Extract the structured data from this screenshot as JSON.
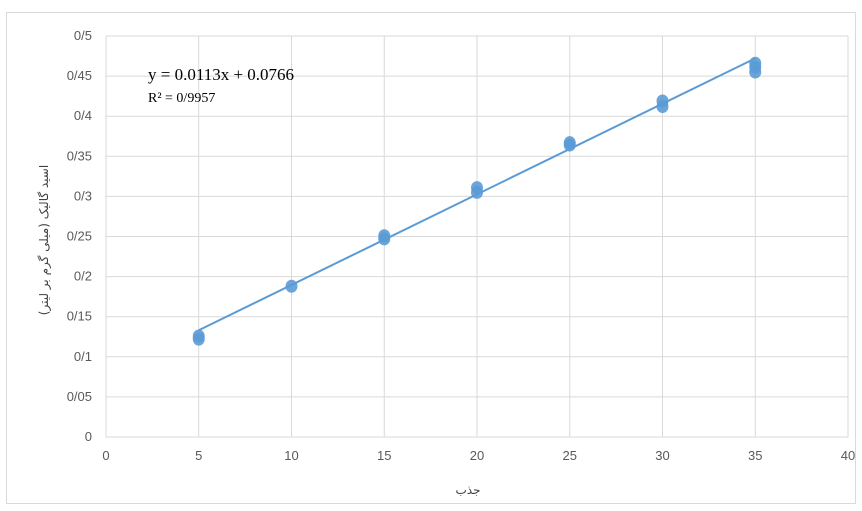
{
  "chart_data": {
    "type": "scatter",
    "title": "",
    "xlabel": "جذب",
    "ylabel": "اسید گالیک (میلی گرم بر لیتر)",
    "xlim": [
      0,
      40
    ],
    "ylim": [
      0,
      0.5
    ],
    "x_ticks": [
      0,
      5,
      10,
      15,
      20,
      25,
      30,
      35,
      40
    ],
    "x_tick_labels": [
      "0",
      "5",
      "10",
      "15",
      "20",
      "25",
      "30",
      "35",
      "40"
    ],
    "y_ticks": [
      0,
      0.05,
      0.1,
      0.15,
      0.2,
      0.25,
      0.3,
      0.35,
      0.4,
      0.45,
      0.5
    ],
    "y_tick_labels": [
      "0",
      "0/05",
      "0/1",
      "0/15",
      "0/2",
      "0/25",
      "0/3",
      "0/35",
      "0/4",
      "0/45",
      "0/5"
    ],
    "grid": true,
    "series": [
      {
        "points": [
          {
            "x": 5,
            "y": 0.122
          },
          {
            "x": 5,
            "y": 0.126
          },
          {
            "x": 10,
            "y": 0.188
          },
          {
            "x": 15,
            "y": 0.247
          },
          {
            "x": 15,
            "y": 0.251
          },
          {
            "x": 20,
            "y": 0.305
          },
          {
            "x": 20,
            "y": 0.311
          },
          {
            "x": 25,
            "y": 0.364
          },
          {
            "x": 25,
            "y": 0.367
          },
          {
            "x": 30,
            "y": 0.412
          },
          {
            "x": 30,
            "y": 0.419
          },
          {
            "x": 35,
            "y": 0.455
          },
          {
            "x": 35,
            "y": 0.461
          },
          {
            "x": 35,
            "y": 0.466
          }
        ],
        "color": "#5b9bd5"
      }
    ],
    "trendline": {
      "type": "linear",
      "slope": 0.0113,
      "intercept": 0.0766,
      "x_range": [
        5,
        35
      ],
      "color": "#5b9bd5",
      "equation_label": "y = 0.0113x + 0.0766",
      "r2_label": "R² = 0/9957"
    }
  }
}
